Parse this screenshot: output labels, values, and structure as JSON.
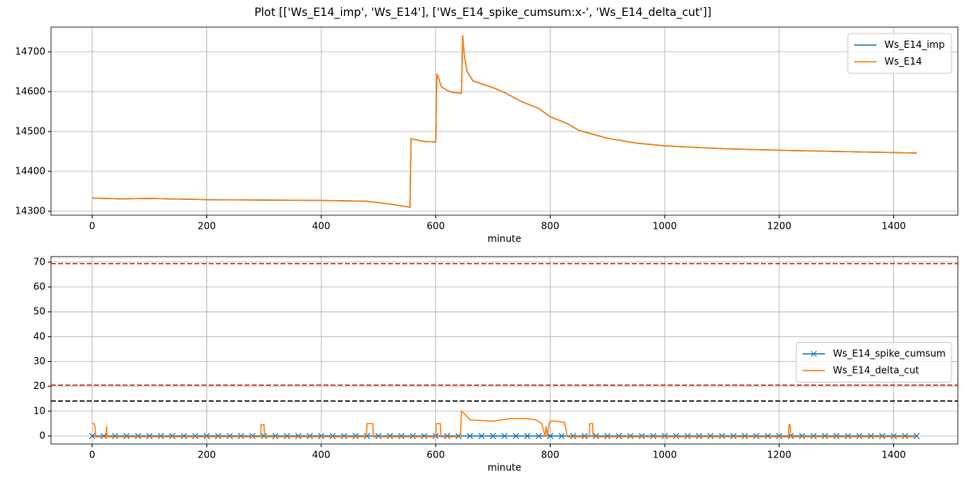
{
  "title": "Plot [['Ws_E14_imp', 'Ws_E14'], ['Ws_E14_spike_cumsum:x-', 'Ws_E14_delta_cut']]",
  "chart_data": [
    {
      "type": "line",
      "xlabel": "minute",
      "xlim": [
        -72,
        1512
      ],
      "ylim": [
        14290,
        14762
      ],
      "xticks": [
        0,
        200,
        400,
        600,
        800,
        1000,
        1200,
        1400
      ],
      "yticks": [
        14300,
        14400,
        14500,
        14600,
        14700
      ],
      "grid": true,
      "legend": "upper right",
      "series": [
        {
          "name": "Ws_E14_imp",
          "color": "#1f77b4",
          "x": [
            0,
            50,
            100,
            200,
            300,
            400,
            480,
            520,
            555,
            557,
            580,
            600,
            602,
            610,
            620,
            630,
            645,
            647,
            650,
            655,
            665,
            700,
            720,
            750,
            780,
            800,
            830,
            850,
            900,
            950,
            1000,
            1100,
            1200,
            1300,
            1440
          ],
          "values": [
            14333,
            14331,
            14332,
            14329,
            14328,
            14327,
            14325,
            14318,
            14310,
            14482,
            14475,
            14474,
            14645,
            14612,
            14603,
            14598,
            14596,
            14742,
            14690,
            14650,
            14627,
            14610,
            14598,
            14575,
            14558,
            14537,
            14520,
            14503,
            14483,
            14471,
            14464,
            14457,
            14453,
            14450,
            14446
          ]
        },
        {
          "name": "Ws_E14",
          "color": "#ff7f0e",
          "x": [
            0,
            50,
            100,
            200,
            300,
            400,
            480,
            520,
            555,
            557,
            580,
            600,
            602,
            610,
            620,
            630,
            645,
            647,
            650,
            655,
            665,
            700,
            720,
            750,
            780,
            800,
            830,
            850,
            900,
            950,
            1000,
            1100,
            1200,
            1300,
            1440
          ],
          "values": [
            14333,
            14331,
            14332,
            14329,
            14328,
            14327,
            14325,
            14318,
            14310,
            14482,
            14475,
            14474,
            14645,
            14612,
            14603,
            14598,
            14596,
            14742,
            14690,
            14650,
            14627,
            14610,
            14598,
            14575,
            14558,
            14537,
            14520,
            14503,
            14483,
            14471,
            14464,
            14457,
            14453,
            14450,
            14446
          ]
        }
      ]
    },
    {
      "type": "line",
      "xlabel": "minute",
      "xlim": [
        -72,
        1512
      ],
      "ylim": [
        -3.2,
        72.2
      ],
      "xticks": [
        0,
        200,
        400,
        600,
        800,
        1000,
        1200,
        1400
      ],
      "yticks": [
        0,
        10,
        20,
        30,
        40,
        50,
        60,
        70
      ],
      "grid": true,
      "legend": "center right",
      "hlines": [
        {
          "value": 69.4,
          "color": "#d62728"
        },
        {
          "value": 20.5,
          "color": "#d62728"
        },
        {
          "value": 14.1,
          "color": "#000000"
        }
      ],
      "series": [
        {
          "name": "Ws_E14_spike_cumsum",
          "color": "#1f77b4",
          "marker": "x",
          "x": [
            0,
            20,
            40,
            60,
            80,
            100,
            120,
            140,
            160,
            180,
            200,
            220,
            240,
            260,
            280,
            300,
            320,
            340,
            360,
            380,
            400,
            420,
            440,
            460,
            480,
            500,
            520,
            540,
            560,
            580,
            600,
            620,
            640,
            660,
            680,
            700,
            720,
            740,
            760,
            780,
            800,
            820,
            840,
            860,
            880,
            900,
            920,
            940,
            960,
            980,
            1000,
            1020,
            1040,
            1060,
            1080,
            1100,
            1120,
            1140,
            1160,
            1180,
            1200,
            1220,
            1240,
            1260,
            1280,
            1300,
            1320,
            1340,
            1360,
            1380,
            1400,
            1420,
            1440
          ],
          "values": [
            0,
            0,
            0,
            0,
            0,
            0,
            0,
            0,
            0,
            0,
            0,
            0,
            0,
            0,
            0,
            0,
            0,
            0,
            0,
            0,
            0,
            0,
            0,
            0,
            0,
            0,
            0,
            0,
            0,
            0,
            0,
            0,
            0,
            0,
            0,
            0,
            0,
            0,
            0,
            0,
            0,
            0,
            0,
            0,
            0,
            0,
            0,
            0,
            0,
            0,
            0,
            0,
            0,
            0,
            0,
            0,
            0,
            0,
            0,
            0,
            0,
            0,
            0,
            0,
            0,
            0,
            0,
            0,
            0,
            0,
            0,
            0,
            0
          ]
        },
        {
          "name": "Ws_E14_delta_cut",
          "color": "#ff7f0e",
          "x": [
            0,
            3,
            5,
            6,
            24,
            25,
            26,
            294,
            295,
            300,
            301,
            479,
            480,
            490,
            491,
            600,
            601,
            608,
            609,
            643,
            645,
            650,
            660,
            700,
            730,
            760,
            775,
            785,
            790,
            791,
            793,
            795,
            798,
            800,
            810,
            825,
            830,
            868,
            869,
            874,
            875,
            1216,
            1217,
            1219,
            1220,
            1440
          ],
          "values": [
            5,
            5,
            3.5,
            -0.3,
            -0.3,
            4,
            -0.3,
            -0.3,
            4.5,
            4.5,
            -0.3,
            -0.3,
            5,
            5,
            -0.3,
            -0.3,
            5,
            5,
            -0.3,
            -0.3,
            10,
            9,
            6.5,
            6,
            7,
            7,
            6.5,
            5,
            1,
            -0.3,
            4,
            -0.3,
            5,
            6,
            6,
            5.5,
            -0.3,
            -0.3,
            5,
            5,
            -0.3,
            -0.3,
            4.5,
            4.5,
            -0.3,
            -0.3
          ]
        }
      ]
    }
  ]
}
